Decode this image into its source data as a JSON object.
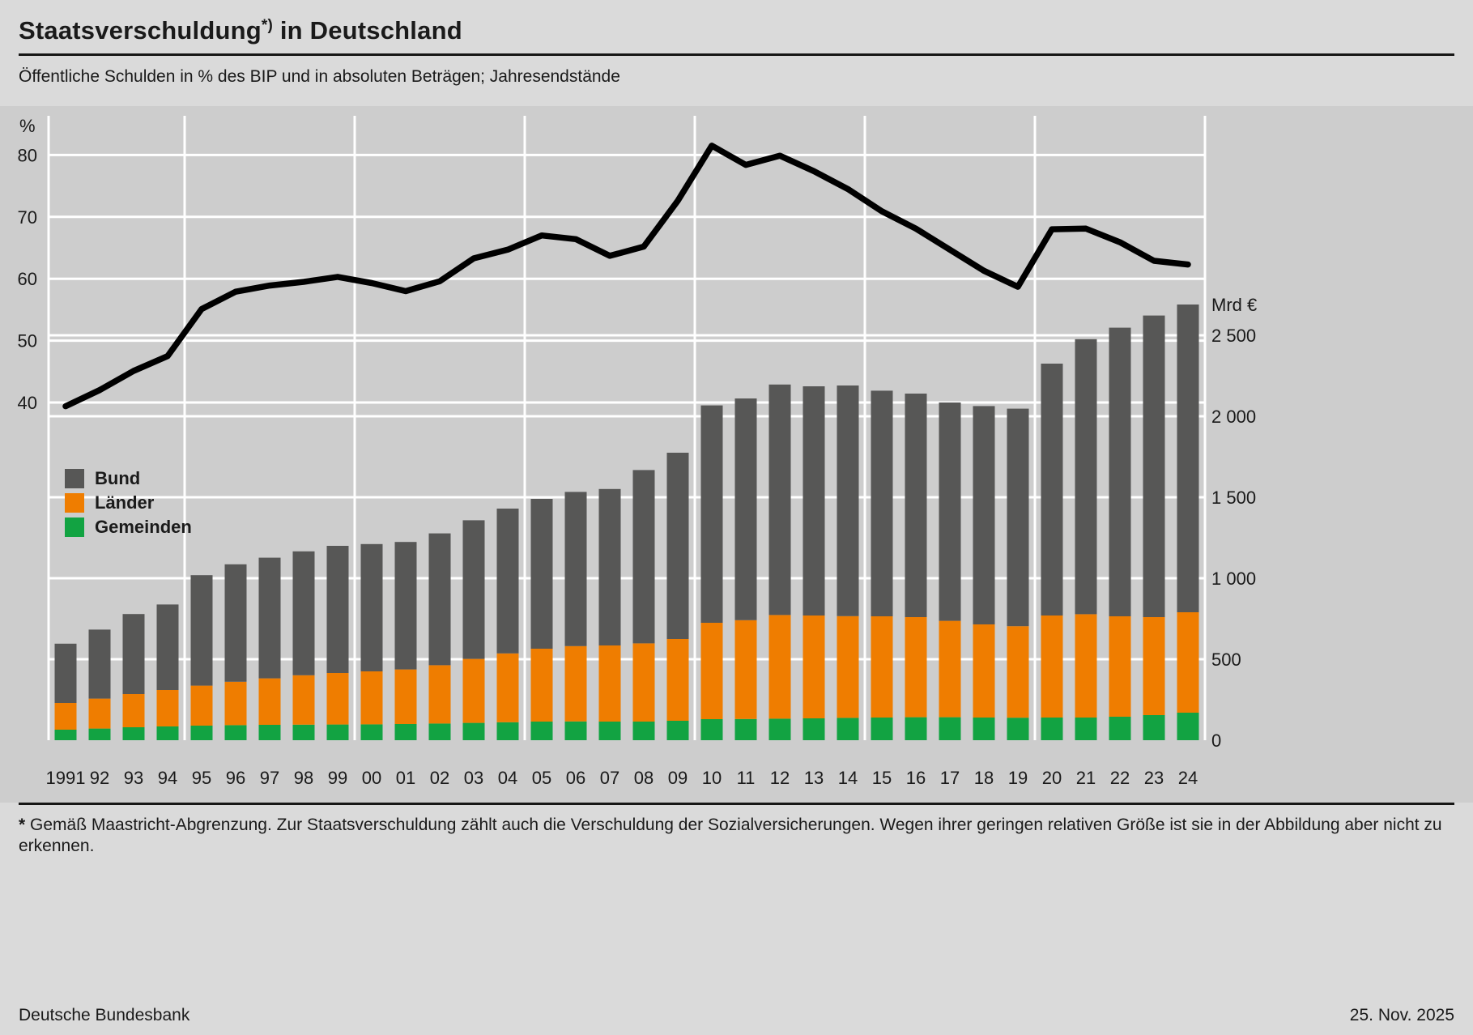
{
  "header": {
    "title_main": "Staatsverschuldung",
    "title_sup": "*)",
    "title_rest": " in Deutschland",
    "subtitle": "Öffentliche Schulden in % des BIP und in absoluten Beträgen; Jahresendstände"
  },
  "footer": {
    "footnote_marker": "*",
    "footnote_text": "Gemäß Maastricht-Abgrenzung. Zur Staatsverschuldung zählt auch die Verschuldung der Sozialversicherungen. Wegen ihrer geringen relativen Größe ist sie in der Abbildung aber nicht zu erkennen.",
    "source": "Deutsche Bundesbank",
    "date": "25. Nov. 2025"
  },
  "chart_data": {
    "type": "bar",
    "subtype": "stacked-bar-with-line",
    "title": "Staatsverschuldung in Deutschland",
    "subtitle": "Öffentliche Schulden in % des BIP und in absoluten Beträgen; Jahresendstände",
    "years": [
      "1991",
      "92",
      "93",
      "94",
      "95",
      "96",
      "97",
      "98",
      "99",
      "00",
      "01",
      "02",
      "03",
      "04",
      "05",
      "06",
      "07",
      "08",
      "09",
      "10",
      "11",
      "12",
      "13",
      "14",
      "15",
      "16",
      "17",
      "18",
      "19",
      "20",
      "21",
      "22",
      "23",
      "24"
    ],
    "line_series": {
      "name": "Öffentliche Schulden in % des BIP",
      "axis": "left",
      "unit": "%",
      "values": [
        39.4,
        42.0,
        45.1,
        47.5,
        55.1,
        57.9,
        58.9,
        59.5,
        60.3,
        59.3,
        58.0,
        59.6,
        63.3,
        64.7,
        67.0,
        66.4,
        63.7,
        65.2,
        72.6,
        81.5,
        78.4,
        79.9,
        77.4,
        74.5,
        70.9,
        68.1,
        64.7,
        61.3,
        58.7,
        68.0,
        68.1,
        65.9,
        62.9,
        62.3
      ]
    },
    "bar_series": [
      {
        "key": "gemeinden",
        "name": "Gemeinden",
        "color": "#12a342",
        "axis": "right",
        "unit": "Mrd €",
        "values": [
          65,
          72,
          80,
          85,
          90,
          93,
          95,
          96,
          97,
          98,
          100,
          103,
          107,
          111,
          115,
          116,
          115,
          115,
          120,
          130,
          131,
          133,
          135,
          138,
          140,
          142,
          142,
          140,
          139,
          140,
          140,
          145,
          155,
          170
        ]
      },
      {
        "key": "laender",
        "name": "Länder",
        "color": "#ef7d00",
        "axis": "right",
        "unit": "Mrd €",
        "values": [
          165,
          185,
          205,
          225,
          247,
          268,
          287,
          305,
          318,
          327,
          337,
          360,
          395,
          425,
          450,
          465,
          470,
          483,
          505,
          595,
          610,
          640,
          635,
          628,
          625,
          618,
          595,
          575,
          565,
          630,
          638,
          620,
          605,
          620
        ]
      },
      {
        "key": "bund",
        "name": "Bund",
        "color": "#575756",
        "axis": "right",
        "unit": "Mrd €",
        "values": [
          366,
          426,
          494,
          528,
          682,
          725,
          745,
          765,
          785,
          786,
          787,
          814,
          856,
          894,
          925,
          952,
          966,
          1070,
          1150,
          1342,
          1369,
          1423,
          1415,
          1424,
          1393,
          1380,
          1348,
          1348,
          1343,
          1555,
          1698,
          1782,
          1862,
          1900
        ]
      }
    ],
    "legend_order": [
      "bund",
      "laender",
      "gemeinden"
    ],
    "axes": {
      "left": {
        "unit": "%",
        "ticks": [
          40,
          50,
          60,
          70,
          80
        ],
        "range": [
          35,
          85
        ],
        "grid": true
      },
      "right": {
        "unit": "Mrd €",
        "ticks": [
          0,
          500,
          1000,
          1500,
          2000,
          2500
        ],
        "tick_labels": [
          "0",
          "500",
          "1 000",
          "1 500",
          "2 000",
          "2 500"
        ],
        "range": [
          0,
          2900
        ],
        "grid": true
      }
    },
    "colors": {
      "background": "#dadada",
      "plot_background": "#cdcdcd",
      "grid": "#ffffff",
      "line": "#000000",
      "text": "#1a1a1a"
    }
  }
}
